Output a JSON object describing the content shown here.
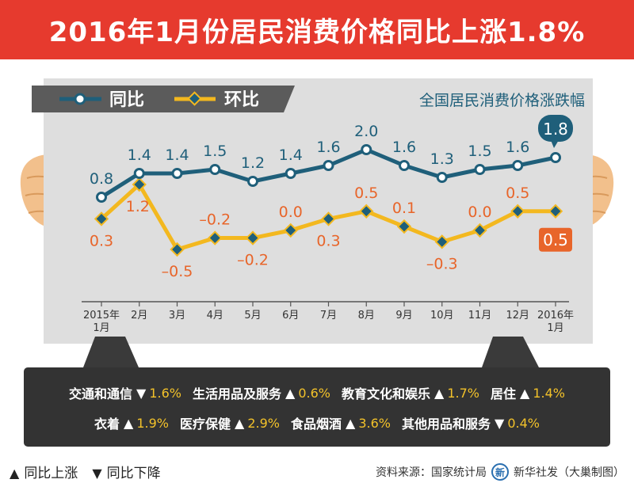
{
  "title": "2016年1月份居民消费价格同比上涨1.8%",
  "chart_data": {
    "type": "line",
    "subtitle": "全国居民消费价格涨跌幅",
    "categories": [
      "2015年\n1月",
      "2月",
      "3月",
      "4月",
      "5月",
      "6月",
      "7月",
      "8月",
      "9月",
      "10月",
      "11月",
      "12月",
      "2016年\n1月"
    ],
    "series": [
      {
        "name": "同比",
        "color": "#1f5f7a",
        "values": [
          0.8,
          1.4,
          1.4,
          1.5,
          1.2,
          1.4,
          1.6,
          2.0,
          1.6,
          1.3,
          1.5,
          1.6,
          1.8
        ],
        "ylim": [
          0.8,
          2.0
        ]
      },
      {
        "name": "环比",
        "color": "#f3b81f",
        "values": [
          0.3,
          1.2,
          -0.5,
          -0.2,
          -0.2,
          0.0,
          0.3,
          0.5,
          0.1,
          -0.3,
          0.0,
          0.5,
          0.5
        ],
        "ylim": [
          -0.5,
          1.2
        ]
      }
    ],
    "labels": {
      "同比": [
        "0.8",
        "1.4",
        "1.4",
        "1.5",
        "1.2",
        "1.4",
        "1.6",
        "2.0",
        "1.6",
        "1.3",
        "1.5",
        "1.6",
        "1.8"
      ],
      "环比": [
        "0.3",
        "1.2",
        "–0.5",
        "–0.2",
        "–0.2",
        "0.0",
        "0.3",
        "0.5",
        "0.1",
        "–0.3",
        "0.0",
        "0.5",
        "0.5"
      ]
    }
  },
  "categories_panel": {
    "row1": [
      {
        "name": "交通和通信",
        "dir": "down",
        "value": "1.6%"
      },
      {
        "name": "生活用品及服务",
        "dir": "up",
        "value": "0.6%"
      },
      {
        "name": "教育文化和娱乐",
        "dir": "up",
        "value": "1.7%"
      },
      {
        "name": "居住",
        "dir": "up",
        "value": "1.4%"
      }
    ],
    "row2": [
      {
        "name": "衣着",
        "dir": "up",
        "value": "1.9%"
      },
      {
        "name": "医疗保健",
        "dir": "up",
        "value": "2.9%"
      },
      {
        "name": "食品烟酒",
        "dir": "up",
        "value": "3.6%"
      },
      {
        "name": "其他用品和服务",
        "dir": "down",
        "value": "0.4%"
      }
    ]
  },
  "footer": {
    "legend_up": "同比上涨",
    "legend_down": "同比下降",
    "source": "资料来源：国家统计局",
    "agency": "新华社发（大巢制图）",
    "logo_text": "新"
  },
  "colors": {
    "title_bg": "#e63a2e",
    "yoy": "#1f5f7a",
    "mom": "#f3b81f",
    "mom_label": "#e8652a",
    "panel_bg": "#333333",
    "chart_bg": "#dedede",
    "hand": "#f2c08c"
  }
}
